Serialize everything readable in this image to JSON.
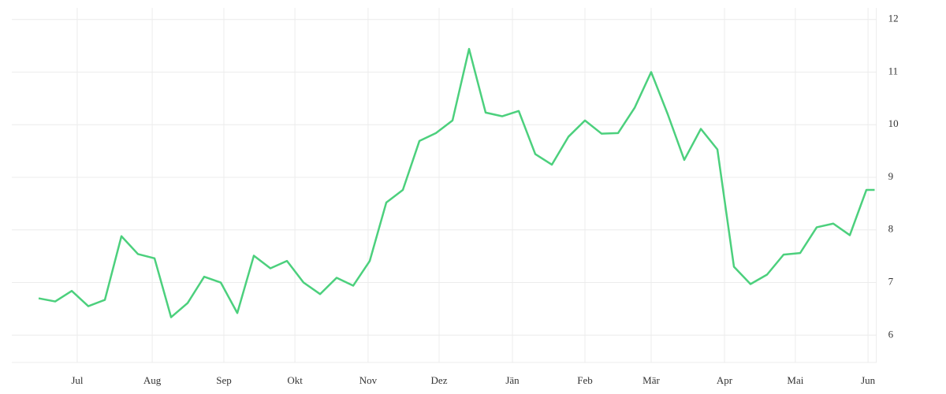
{
  "chart_data": {
    "type": "line",
    "x": [
      0,
      1,
      2,
      3,
      4,
      5,
      6,
      7,
      8,
      9,
      10,
      11,
      12,
      13,
      14,
      15,
      16,
      17,
      18,
      19,
      20,
      21,
      22,
      23,
      24,
      25,
      26,
      27,
      28,
      29,
      30,
      31,
      32,
      33,
      34,
      35,
      36,
      37,
      38,
      39,
      40,
      41,
      42,
      43,
      44,
      45,
      46,
      47,
      48,
      49,
      50,
      50.5
    ],
    "series": [
      {
        "color": "#4cd07d",
        "values": [
          6.7,
          6.64,
          6.84,
          6.55,
          6.67,
          7.88,
          7.54,
          7.46,
          6.34,
          6.61,
          7.11,
          7.0,
          6.42,
          7.51,
          7.27,
          7.41,
          7.0,
          6.78,
          7.09,
          6.94,
          7.41,
          8.52,
          8.76,
          9.69,
          9.84,
          10.08,
          11.44,
          10.23,
          10.16,
          10.26,
          9.44,
          9.24,
          9.77,
          10.08,
          9.83,
          9.84,
          10.32,
          11.0,
          10.2,
          9.33,
          9.92,
          9.53,
          7.3,
          6.97,
          7.15,
          7.53,
          7.56,
          8.05,
          8.12,
          7.9,
          8.76,
          8.76
        ]
      }
    ],
    "xlim": [
      -1.62,
      50.6
    ],
    "xticks": [
      {
        "value": 2.33,
        "label": "Jul"
      },
      {
        "value": 6.86,
        "label": "Aug"
      },
      {
        "value": 11.19,
        "label": "Sep"
      },
      {
        "value": 15.48,
        "label": "Okt"
      },
      {
        "value": 19.9,
        "label": "Nov"
      },
      {
        "value": 24.19,
        "label": "Dez"
      },
      {
        "value": 28.62,
        "label": "Jän"
      },
      {
        "value": 33.0,
        "label": "Feb"
      },
      {
        "value": 37.0,
        "label": "Mär"
      },
      {
        "value": 41.43,
        "label": "Apr"
      },
      {
        "value": 45.71,
        "label": "Mai"
      },
      {
        "value": 50.1,
        "label": "Jun"
      }
    ],
    "ylim": [
      5.48,
      12.22
    ],
    "yticks": [
      6,
      7,
      8,
      9,
      10,
      11,
      12
    ],
    "grid": true
  }
}
